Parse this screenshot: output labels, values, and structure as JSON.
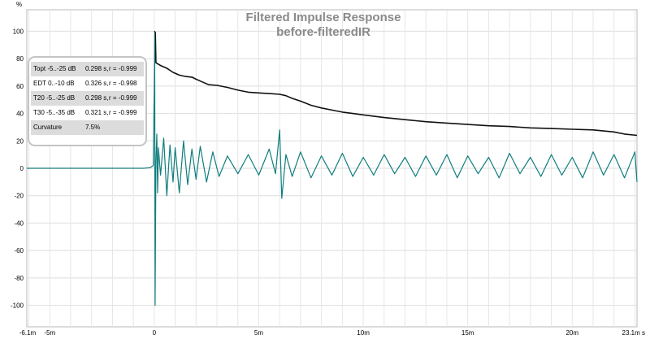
{
  "chart_data": {
    "type": "line",
    "title": "Filtered Impulse Response",
    "subtitle": "before-filteredIR",
    "ylabel": "%",
    "xlabel": "",
    "xlim": [
      -6.1,
      23.1
    ],
    "ylim": [
      -105,
      105
    ],
    "xticks": [
      {
        "value": -6.1,
        "label": "-6.1m"
      },
      {
        "value": -5,
        "label": "-5m"
      },
      {
        "value": 0,
        "label": "0"
      },
      {
        "value": 5,
        "label": "5m"
      },
      {
        "value": 10,
        "label": "10m"
      },
      {
        "value": 15,
        "label": "15m"
      },
      {
        "value": 20,
        "label": "20m"
      },
      {
        "value": 23.1,
        "label": "23.1m s"
      }
    ],
    "yticks": [
      100,
      80,
      60,
      40,
      20,
      0,
      -20,
      -40,
      -60,
      -80,
      -100
    ],
    "grid": true,
    "series": [
      {
        "color": "#111111",
        "points": [
          [
            0,
            100
          ],
          [
            0.05,
            99
          ],
          [
            0.08,
            77
          ],
          [
            0.3,
            75
          ],
          [
            0.6,
            73
          ],
          [
            0.9,
            70
          ],
          [
            1.2,
            68
          ],
          [
            1.5,
            67
          ],
          [
            1.8,
            66.5
          ],
          [
            2,
            65
          ],
          [
            2.3,
            63
          ],
          [
            2.6,
            61
          ],
          [
            3,
            60.5
          ],
          [
            3.5,
            59
          ],
          [
            4,
            57
          ],
          [
            4.5,
            55.5
          ],
          [
            5,
            55
          ],
          [
            5.5,
            54.5
          ],
          [
            6,
            54
          ],
          [
            6.3,
            53
          ],
          [
            6.6,
            51
          ],
          [
            7,
            49
          ],
          [
            7.5,
            46
          ],
          [
            8,
            44
          ],
          [
            8.5,
            42.5
          ],
          [
            9,
            41
          ],
          [
            9.5,
            40
          ],
          [
            10,
            39
          ],
          [
            11,
            37
          ],
          [
            12,
            35.5
          ],
          [
            13,
            34
          ],
          [
            14,
            33
          ],
          [
            15,
            32
          ],
          [
            16,
            31
          ],
          [
            17,
            30.5
          ],
          [
            18,
            29.5
          ],
          [
            19,
            29
          ],
          [
            20,
            28.5
          ],
          [
            21,
            28
          ],
          [
            22,
            26.5
          ],
          [
            22.5,
            25
          ],
          [
            23.1,
            24
          ]
        ]
      },
      {
        "color": "#117d7d",
        "points": [
          [
            -6.1,
            0
          ],
          [
            -0.5,
            0
          ],
          [
            -0.2,
            0.5
          ],
          [
            -0.05,
            2
          ],
          [
            0,
            60
          ],
          [
            0.02,
            98
          ],
          [
            0.04,
            -100
          ],
          [
            0.08,
            5
          ],
          [
            0.12,
            25
          ],
          [
            0.16,
            -18
          ],
          [
            0.2,
            15
          ],
          [
            0.3,
            -5
          ],
          [
            0.45,
            22
          ],
          [
            0.6,
            -20
          ],
          [
            0.75,
            17
          ],
          [
            0.9,
            -10
          ],
          [
            1.0,
            15
          ],
          [
            1.2,
            -18
          ],
          [
            1.4,
            20
          ],
          [
            1.6,
            -12
          ],
          [
            1.8,
            14
          ],
          [
            2.0,
            -8
          ],
          [
            2.2,
            16
          ],
          [
            2.5,
            -10
          ],
          [
            2.8,
            12
          ],
          [
            3.1,
            -6
          ],
          [
            3.5,
            9
          ],
          [
            4,
            -4
          ],
          [
            4.5,
            10
          ],
          [
            5,
            -5
          ],
          [
            5.5,
            14
          ],
          [
            5.8,
            -4
          ],
          [
            6.0,
            28
          ],
          [
            6.1,
            -22
          ],
          [
            6.3,
            10
          ],
          [
            6.6,
            -6
          ],
          [
            7,
            12
          ],
          [
            7.5,
            -7
          ],
          [
            8,
            9
          ],
          [
            8.5,
            -5
          ],
          [
            9,
            11
          ],
          [
            9.5,
            -6
          ],
          [
            10,
            8
          ],
          [
            10.5,
            -5
          ],
          [
            11,
            10
          ],
          [
            11.5,
            -4
          ],
          [
            12,
            8
          ],
          [
            12.5,
            -6
          ],
          [
            13,
            9
          ],
          [
            13.5,
            -5
          ],
          [
            14,
            10
          ],
          [
            14.5,
            -7
          ],
          [
            15,
            9
          ],
          [
            15.5,
            -4
          ],
          [
            16,
            8
          ],
          [
            16.5,
            -7
          ],
          [
            17,
            11
          ],
          [
            17.5,
            -4
          ],
          [
            18,
            8
          ],
          [
            18.5,
            -6
          ],
          [
            19,
            10
          ],
          [
            19.5,
            -5
          ],
          [
            20,
            8
          ],
          [
            20.5,
            -7
          ],
          [
            21,
            12
          ],
          [
            21.5,
            -5
          ],
          [
            22,
            10
          ],
          [
            22.5,
            -7
          ],
          [
            23,
            12
          ],
          [
            23.1,
            -10
          ]
        ]
      }
    ],
    "stats": [
      {
        "label": "Topt -5..-25 dB",
        "value": "0.298 s,",
        "r": "r = -0.999"
      },
      {
        "label": "EDT  0..-10 dB",
        "value": "0.326 s,",
        "r": "r = -0.998"
      },
      {
        "label": "T20 -5..-25 dB",
        "value": "0.298 s,",
        "r": "r = -0.999"
      },
      {
        "label": "T30 -5..-35 dB",
        "value": "0.321 s,",
        "r": "r = -0.999"
      },
      {
        "label": "Curvature",
        "value": "7.5%",
        "r": ""
      }
    ]
  }
}
